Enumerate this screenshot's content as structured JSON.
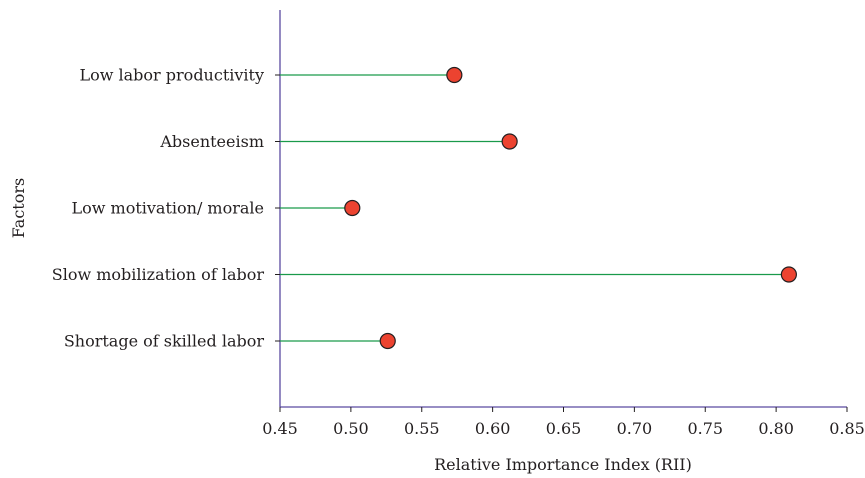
{
  "chart_data": {
    "type": "lollipop",
    "orientation": "horizontal",
    "categories": [
      "Low labor productivity",
      "Absenteeism",
      "Low motivation/ morale",
      "Slow mobilization of labor",
      "Shortage of skilled labor"
    ],
    "values": [
      0.573,
      0.612,
      0.501,
      0.809,
      0.526
    ],
    "xlabel": "Relative Importance Index (RII)",
    "ylabel": "Factors",
    "xlim": [
      0.45,
      0.85
    ],
    "xticks": [
      "0.45",
      "0.50",
      "0.55",
      "0.60",
      "0.65",
      "0.70",
      "0.75",
      "0.80",
      "0.85"
    ],
    "grid": false,
    "legend": "none",
    "colors": {
      "stem": "#1a9a4a",
      "marker_fill": "#ec4330",
      "marker_edge": "#231f20",
      "axis": "#5b4aa0"
    }
  }
}
